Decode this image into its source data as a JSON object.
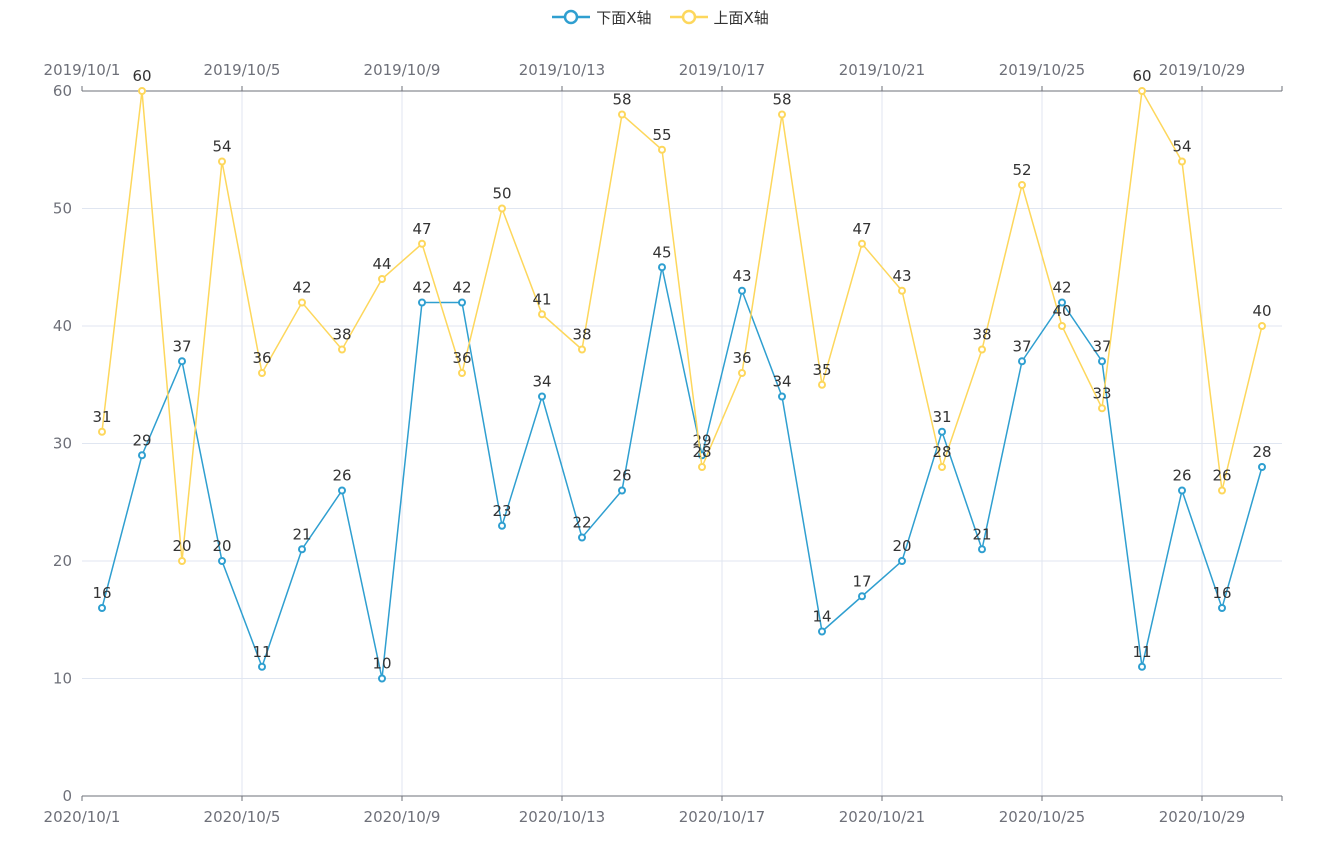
{
  "legend": {
    "items": [
      {
        "name": "下面X轴",
        "color": "#2f9fd0"
      },
      {
        "name": "上面X轴",
        "color": "#fdd75c"
      }
    ]
  },
  "chart_data": {
    "type": "line",
    "ylim": [
      0,
      60
    ],
    "yticks": [
      0,
      10,
      20,
      30,
      40,
      50,
      60
    ],
    "grid": true,
    "legend_position": "top-center",
    "series": [
      {
        "name": "下面X轴",
        "axis": "bottom",
        "color": "#2f9fd0",
        "x": [
          "2020/10/1",
          "2020/10/2",
          "2020/10/3",
          "2020/10/4",
          "2020/10/5",
          "2020/10/6",
          "2020/10/7",
          "2020/10/8",
          "2020/10/9",
          "2020/10/10",
          "2020/10/11",
          "2020/10/12",
          "2020/10/13",
          "2020/10/14",
          "2020/10/15",
          "2020/10/16",
          "2020/10/17",
          "2020/10/18",
          "2020/10/19",
          "2020/10/20",
          "2020/10/21",
          "2020/10/22",
          "2020/10/23",
          "2020/10/24",
          "2020/10/25",
          "2020/10/26",
          "2020/10/27",
          "2020/10/28",
          "2020/10/29",
          "2020/10/30"
        ],
        "values": [
          16,
          29,
          37,
          20,
          11,
          21,
          26,
          10,
          42,
          42,
          23,
          34,
          22,
          26,
          45,
          29,
          43,
          34,
          14,
          17,
          20,
          31,
          21,
          37,
          42,
          37,
          11,
          26,
          16,
          28
        ]
      },
      {
        "name": "上面X轴",
        "axis": "top",
        "color": "#fdd75c",
        "x": [
          "2019/10/1",
          "2019/10/2",
          "2019/10/3",
          "2019/10/4",
          "2019/10/5",
          "2019/10/6",
          "2019/10/7",
          "2019/10/8",
          "2019/10/9",
          "2019/10/10",
          "2019/10/11",
          "2019/10/12",
          "2019/10/13",
          "2019/10/14",
          "2019/10/15",
          "2019/10/16",
          "2019/10/17",
          "2019/10/18",
          "2019/10/19",
          "2019/10/20",
          "2019/10/21",
          "2019/10/22",
          "2019/10/23",
          "2019/10/24",
          "2019/10/25",
          "2019/10/26",
          "2019/10/27",
          "2019/10/28",
          "2019/10/29",
          "2019/10/30"
        ],
        "values": [
          31,
          60,
          20,
          54,
          36,
          42,
          38,
          44,
          47,
          36,
          50,
          41,
          38,
          58,
          55,
          28,
          36,
          58,
          35,
          47,
          43,
          28,
          38,
          52,
          40,
          33,
          60,
          54,
          26,
          40
        ]
      }
    ],
    "x_bottom_ticks": [
      "2020/10/1",
      "2020/10/5",
      "2020/10/9",
      "2020/10/13",
      "2020/10/17",
      "2020/10/21",
      "2020/10/25",
      "2020/10/29"
    ],
    "x_top_ticks": [
      "2019/10/1",
      "2019/10/5",
      "2019/10/9",
      "2019/10/13",
      "2019/10/17",
      "2019/10/21",
      "2019/10/25",
      "2019/10/29"
    ]
  }
}
